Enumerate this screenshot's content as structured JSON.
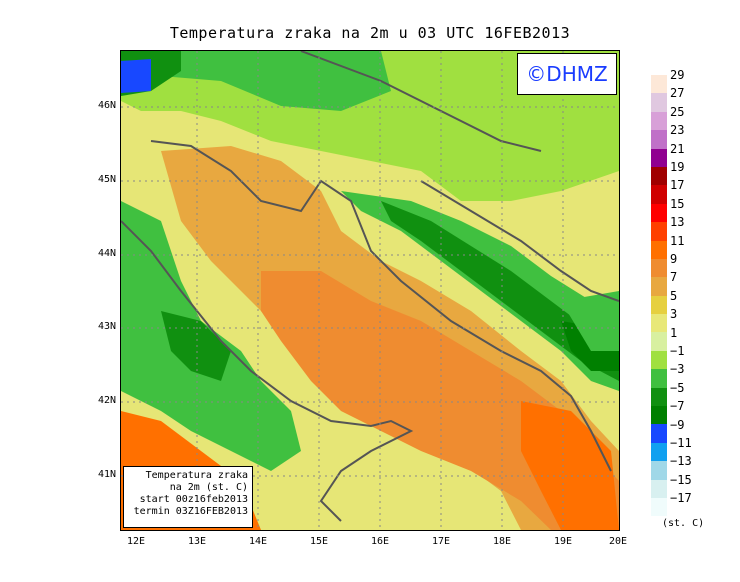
{
  "title": "Temperatura zraka na 2m u 03 UTC 16FEB2013",
  "logo_text": "©DHMZ",
  "info_box": {
    "line1": "Temperatura zraka",
    "line2": "na 2m (st. C)",
    "line3": "start 00z16feb2013",
    "line4": "termin 03Z16FEB2013"
  },
  "lat_labels": [
    "46N",
    "45N",
    "44N",
    "43N",
    "42N",
    "41N"
  ],
  "lon_labels": [
    "12E",
    "13E",
    "14E",
    "15E",
    "16E",
    "17E",
    "18E",
    "19E",
    "20E"
  ],
  "colorbar": {
    "labels": [
      "29",
      "27",
      "25",
      "23",
      "21",
      "19",
      "17",
      "15",
      "13",
      "11",
      "9",
      "7",
      "5",
      "3",
      "1",
      "−1",
      "−3",
      "−5",
      "−7",
      "−9",
      "−11",
      "−13",
      "−15",
      "−17"
    ],
    "colors": [
      "#fde8d8",
      "#e0c8e0",
      "#d8a0d8",
      "#c070c8",
      "#900090",
      "#a00000",
      "#d00000",
      "#ff0000",
      "#ff4000",
      "#ff7000",
      "#ef8c30",
      "#e8a840",
      "#e6d040",
      "#e8e878",
      "#d8f0a0",
      "#a0e040",
      "#40c040",
      "#109010",
      "#008000",
      "#1848ff",
      "#10a0f0",
      "#a0d8e8",
      "#d8f0f0",
      "#f0fcfc"
    ],
    "unit": "(st. C)"
  }
}
